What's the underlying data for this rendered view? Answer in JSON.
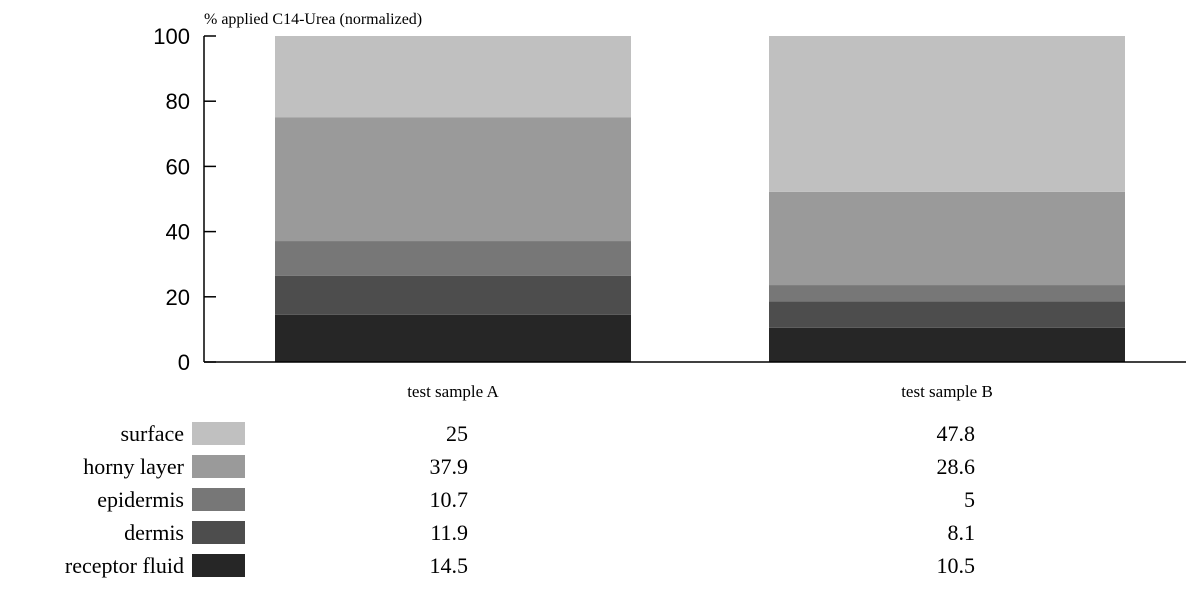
{
  "chart_data": {
    "type": "bar",
    "stacked": true,
    "ylabel": "% applied C14-Urea (normalized)",
    "ylim": [
      0,
      100
    ],
    "yticks": [
      0,
      20,
      40,
      60,
      80,
      100
    ],
    "categories": [
      "test sample A",
      "test sample B"
    ],
    "series": [
      {
        "name": "receptor fluid",
        "values": [
          "14.5",
          "10.5"
        ],
        "color": "#262626"
      },
      {
        "name": "dermis",
        "values": [
          "11.9",
          "8.1"
        ],
        "color": "#4d4d4d"
      },
      {
        "name": "epidermis",
        "values": [
          "10.7",
          "5"
        ],
        "color": "#777777"
      },
      {
        "name": "horny layer",
        "values": [
          "37.9",
          "28.6"
        ],
        "color": "#9a9a9a"
      },
      {
        "name": "surface",
        "values": [
          "25",
          "47.8"
        ],
        "color": "#c0c0c0"
      }
    ],
    "normalized": true,
    "grid": false,
    "legend": "data table below chart"
  }
}
